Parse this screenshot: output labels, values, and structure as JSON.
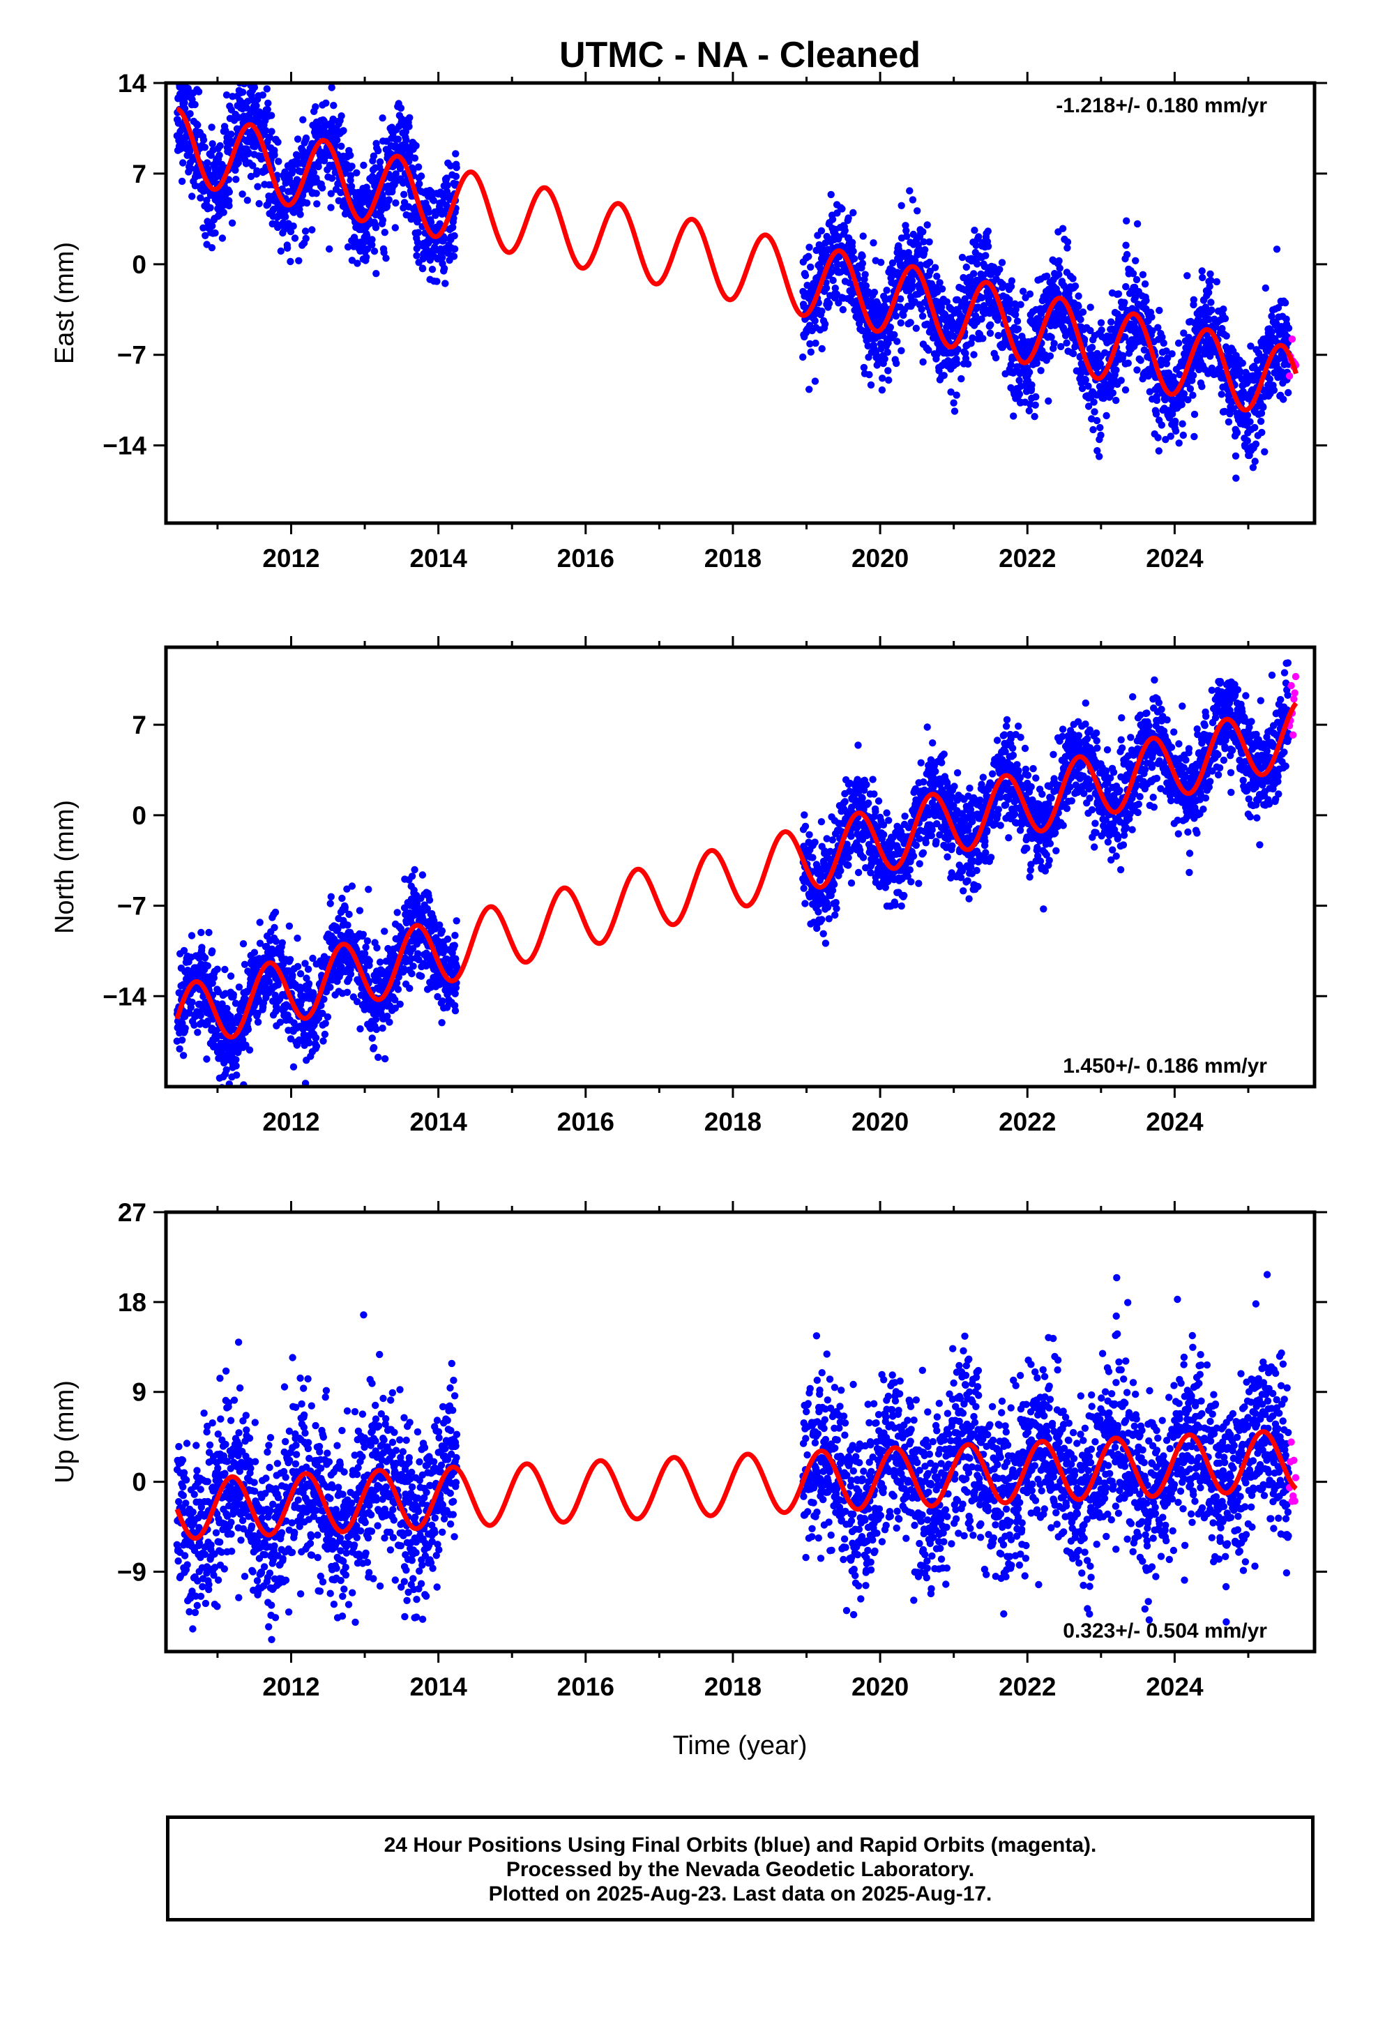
{
  "chart_data": {
    "title": "UTMC  - NA - Cleaned",
    "xlabel": "Time (year)",
    "xlim": [
      2010.3,
      2025.9
    ],
    "x_ticks": [
      2012,
      2014,
      2016,
      2018,
      2020,
      2022,
      2024
    ],
    "panels": [
      {
        "type": "scatter",
        "ylabel": "East (mm)",
        "ylim": [
          -20,
          14
        ],
        "y_ticks": [
          14,
          7,
          0,
          -7,
          -14
        ],
        "rate_text": "-1.218+/- 0.180 mm/yr",
        "rate_position": "top-right",
        "model": {
          "offset": 0.0,
          "rate": -1.218,
          "amplitude": 2.8,
          "phase": 0.2,
          "ref_year": 2018.0
        },
        "series": [
          {
            "name": "Final Orbits",
            "color": "#0000ff",
            "segments": [
              [
                2010.45,
                2014.25
              ],
              [
                2018.95,
                2025.55
              ]
            ],
            "scatter": 2.0
          },
          {
            "name": "Rapid Orbits",
            "color": "#ff00ff",
            "segments": [
              [
                2025.56,
                2025.65
              ]
            ],
            "scatter": 1.2
          }
        ]
      },
      {
        "type": "scatter",
        "ylabel": "North (mm)",
        "ylim": [
          -21,
          13
        ],
        "y_ticks": [
          7,
          0,
          -7,
          -14
        ],
        "rate_text": "1.450+/- 0.186 mm/yr",
        "rate_position": "bottom-right",
        "model": {
          "offset": -4.8,
          "rate": 1.45,
          "amplitude": 2.5,
          "phase": 0.45,
          "ref_year": 2018.0
        },
        "series": [
          {
            "name": "Final Orbits",
            "color": "#0000ff",
            "segments": [
              [
                2010.45,
                2014.25
              ],
              [
                2018.95,
                2025.55
              ]
            ],
            "scatter": 1.8
          },
          {
            "name": "Rapid Orbits",
            "color": "#ff00ff",
            "segments": [
              [
                2025.56,
                2025.65
              ]
            ],
            "scatter": 1.2
          }
        ]
      },
      {
        "type": "scatter",
        "ylabel": "Up (mm)",
        "ylim": [
          -17,
          27
        ],
        "y_ticks": [
          27,
          18,
          9,
          0,
          -9
        ],
        "rate_text": "0.323+/- 0.504 mm/yr",
        "rate_position": "bottom-right",
        "model": {
          "offset": -0.3,
          "rate": 0.323,
          "amplitude": 3.0,
          "phase": 0.95,
          "ref_year": 2018.0
        },
        "series": [
          {
            "name": "Final Orbits",
            "color": "#0000ff",
            "segments": [
              [
                2010.45,
                2014.25
              ],
              [
                2018.95,
                2025.55
              ]
            ],
            "scatter": 4.2
          },
          {
            "name": "Rapid Orbits",
            "color": "#ff00ff",
            "segments": [
              [
                2025.56,
                2025.65
              ]
            ],
            "scatter": 3.0
          }
        ]
      }
    ],
    "model_color": "#ff0000"
  },
  "footer": {
    "line1": "24 Hour Positions Using Final Orbits (blue) and Rapid Orbits (magenta).",
    "line2": "Processed by the Nevada Geodetic Laboratory.",
    "line3": "Plotted on 2025-Aug-23. Last data on 2025-Aug-17."
  }
}
